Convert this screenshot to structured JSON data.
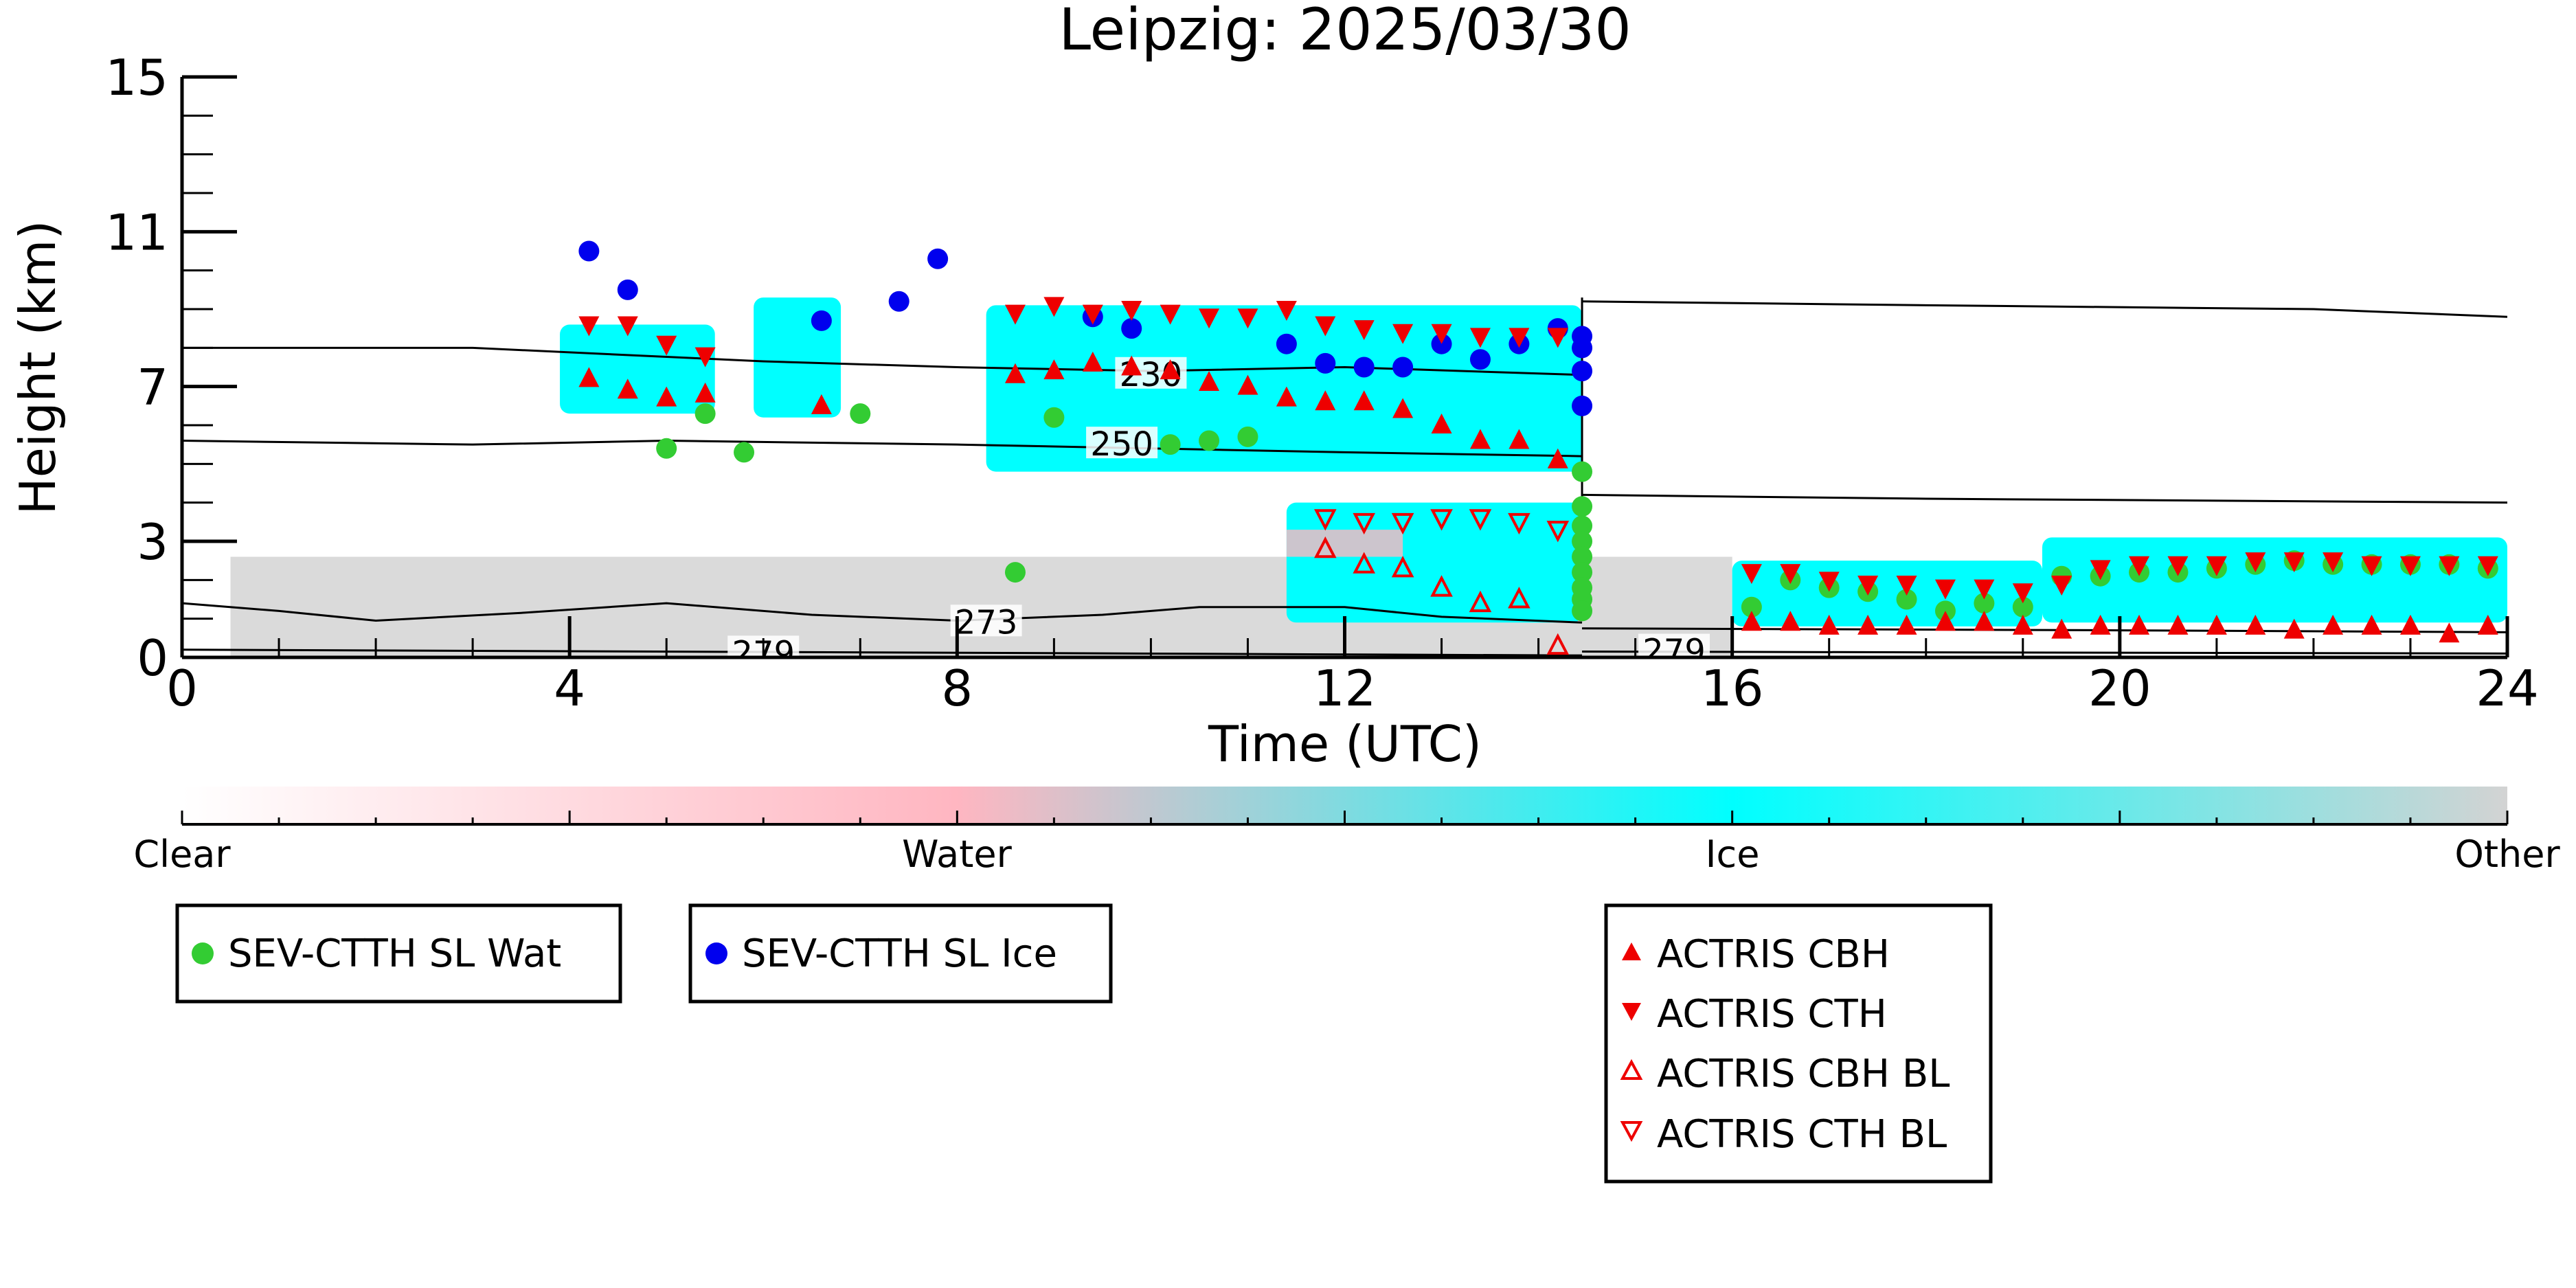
{
  "chart_data": {
    "type": "scatter",
    "title": "Leipzig: 2025/03/30",
    "xlabel": "Time (UTC)",
    "ylabel": "Height (km)",
    "xlim": [
      0,
      24
    ],
    "ylim": [
      0,
      15
    ],
    "xticks": [
      0,
      4,
      8,
      12,
      16,
      20,
      24
    ],
    "yticks": [
      0,
      3,
      7,
      11,
      15
    ],
    "grid": false,
    "colorbar": {
      "labels": [
        "Clear",
        "Water",
        "Ice",
        "Other"
      ],
      "colors": [
        "#ffffff",
        "#ffb6c1",
        "#00ffff",
        "#d3d3d3"
      ]
    },
    "background": {
      "ice_regions": [
        {
          "x0": 3.9,
          "x1": 5.5,
          "y0": 6.3,
          "y1": 8.6
        },
        {
          "x0": 5.9,
          "x1": 6.8,
          "y0": 6.2,
          "y1": 9.3
        },
        {
          "x0": 8.3,
          "x1": 14.45,
          "y0": 4.8,
          "y1": 9.1
        },
        {
          "x0": 11.4,
          "x1": 14.45,
          "y0": 0.9,
          "y1": 4.0
        },
        {
          "x0": 16.0,
          "x1": 19.2,
          "y0": 0.8,
          "y1": 2.5
        },
        {
          "x0": 19.2,
          "x1": 24.0,
          "y0": 0.9,
          "y1": 3.1
        }
      ],
      "other_band": {
        "x0": 0.5,
        "x1": 16.0,
        "y0": 0.0,
        "y1": 2.6
      }
    },
    "contours": [
      {
        "label": "230",
        "label_at": [
          10.0,
          7.3
        ],
        "segments": [
          [
            [
              0,
              8.0
            ],
            [
              3,
              8.0
            ],
            [
              6,
              7.65
            ],
            [
              8,
              7.5
            ],
            [
              10,
              7.4
            ],
            [
              12,
              7.5
            ],
            [
              14.45,
              7.3
            ]
          ],
          [
            [
              14.45,
              9.2
            ],
            [
              18,
              9.1
            ],
            [
              22,
              9.0
            ],
            [
              24,
              8.8
            ]
          ]
        ]
      },
      {
        "label": "250",
        "label_at": [
          9.7,
          5.5
        ],
        "segments": [
          [
            [
              0,
              5.6
            ],
            [
              3,
              5.5
            ],
            [
              5,
              5.6
            ],
            [
              8,
              5.5
            ],
            [
              10,
              5.4
            ],
            [
              12,
              5.3
            ],
            [
              14.45,
              5.2
            ]
          ],
          [
            [
              14.45,
              4.2
            ],
            [
              18,
              4.1
            ],
            [
              24,
              4.0
            ]
          ]
        ]
      },
      {
        "label": "273",
        "label_at": [
          8.3,
          0.9
        ],
        "segments": [
          [
            [
              0,
              1.4
            ],
            [
              1,
              1.2
            ],
            [
              2,
              0.95
            ],
            [
              3.5,
              1.15
            ],
            [
              5,
              1.4
            ],
            [
              6.5,
              1.1
            ],
            [
              8,
              0.95
            ],
            [
              9.5,
              1.1
            ],
            [
              10.5,
              1.3
            ],
            [
              12,
              1.3
            ],
            [
              13,
              1.05
            ],
            [
              14.45,
              0.9
            ]
          ],
          [
            [
              14.45,
              0.75
            ],
            [
              20,
              0.7
            ],
            [
              24,
              0.65
            ]
          ]
        ]
      },
      {
        "label": "279",
        "label_at": [
          6.0,
          0.1
        ],
        "segments": [
          [
            [
              0,
              0.2
            ],
            [
              8,
              0.12
            ],
            [
              14.45,
              0.05
            ]
          ]
        ]
      },
      {
        "label": "279",
        "label_at": [
          15.4,
          0.15
        ],
        "segments": [
          [
            [
              14.45,
              0.15
            ],
            [
              24,
              0.1
            ]
          ]
        ]
      }
    ],
    "series": [
      {
        "name": "SEV-CTTH SL Wat",
        "marker": "circle",
        "color": "#33cc33",
        "x": [
          5.0,
          5.4,
          5.8,
          7.0,
          8.6,
          9.0,
          10.2,
          10.6,
          11.0,
          14.45,
          14.45,
          14.45,
          14.45,
          14.45,
          14.45,
          14.45,
          14.45,
          14.45,
          16.2,
          16.6,
          17.0,
          17.4,
          17.8,
          18.2,
          18.6,
          19.0,
          19.4,
          19.8,
          20.2,
          20.6,
          21.0,
          21.4,
          21.8,
          22.2,
          22.6,
          23.0,
          23.4,
          23.8
        ],
        "y": [
          5.4,
          6.3,
          5.3,
          6.3,
          2.2,
          6.2,
          5.5,
          5.6,
          5.7,
          4.8,
          3.9,
          3.4,
          3.0,
          2.6,
          2.2,
          1.8,
          1.5,
          1.2,
          1.3,
          2.0,
          1.8,
          1.7,
          1.5,
          1.2,
          1.4,
          1.3,
          2.1,
          2.1,
          2.2,
          2.2,
          2.3,
          2.4,
          2.5,
          2.4,
          2.4,
          2.4,
          2.4,
          2.3
        ]
      },
      {
        "name": "SEV-CTTH SL Ice",
        "marker": "circle",
        "color": "#0000ee",
        "x": [
          4.2,
          4.6,
          6.6,
          7.4,
          7.8,
          9.4,
          9.8,
          11.4,
          11.8,
          12.2,
          12.6,
          13.0,
          13.4,
          13.8,
          14.2,
          14.45,
          14.45,
          14.45,
          14.45
        ],
        "y": [
          10.5,
          9.5,
          8.7,
          9.2,
          10.3,
          8.8,
          8.5,
          8.1,
          7.6,
          7.5,
          7.5,
          8.1,
          7.7,
          8.1,
          8.5,
          8.3,
          8.0,
          7.4,
          6.5
        ]
      },
      {
        "name": "ACTRIS CBH",
        "marker": "triangle-up",
        "color": "#ee0000",
        "x": [
          4.2,
          4.6,
          5.0,
          5.4,
          6.6,
          8.6,
          9.0,
          9.4,
          9.8,
          10.2,
          10.6,
          11.0,
          11.4,
          11.8,
          12.2,
          12.6,
          13.0,
          13.4,
          13.8,
          14.2,
          16.2,
          16.6,
          17.0,
          17.4,
          17.8,
          18.2,
          18.6,
          19.0,
          19.4,
          19.8,
          20.2,
          20.6,
          21.0,
          21.4,
          21.8,
          22.2,
          22.6,
          23.0,
          23.4,
          23.8
        ],
        "y": [
          7.2,
          6.9,
          6.7,
          6.8,
          6.5,
          7.3,
          7.4,
          7.6,
          7.5,
          7.4,
          7.1,
          7.0,
          6.7,
          6.6,
          6.6,
          6.4,
          6.0,
          5.6,
          5.6,
          5.1,
          0.9,
          0.9,
          0.8,
          0.8,
          0.8,
          0.9,
          0.9,
          0.8,
          0.7,
          0.8,
          0.8,
          0.8,
          0.8,
          0.8,
          0.7,
          0.8,
          0.8,
          0.8,
          0.6,
          0.8
        ]
      },
      {
        "name": "ACTRIS CTH",
        "marker": "triangle-down",
        "color": "#ee0000",
        "x": [
          4.2,
          4.6,
          5.0,
          5.4,
          8.6,
          9.0,
          9.4,
          9.8,
          10.2,
          10.6,
          11.0,
          11.4,
          11.8,
          12.2,
          12.6,
          13.0,
          13.4,
          13.8,
          14.2,
          16.2,
          16.6,
          17.0,
          17.4,
          17.8,
          18.2,
          18.6,
          19.0,
          19.4,
          19.8,
          20.2,
          20.6,
          21.0,
          21.4,
          21.8,
          22.2,
          22.6,
          23.0,
          23.4,
          23.8
        ],
        "y": [
          8.6,
          8.6,
          8.1,
          7.8,
          8.9,
          9.1,
          8.9,
          9.0,
          8.9,
          8.8,
          8.8,
          9.0,
          8.6,
          8.5,
          8.4,
          8.4,
          8.3,
          8.3,
          8.3,
          2.2,
          2.2,
          2.0,
          1.9,
          1.9,
          1.8,
          1.8,
          1.7,
          1.9,
          2.3,
          2.4,
          2.4,
          2.4,
          2.5,
          2.5,
          2.5,
          2.4,
          2.4,
          2.4,
          2.4
        ]
      },
      {
        "name": "ACTRIS CBH BL",
        "marker": "triangle-up-open",
        "color": "#ee0000",
        "x": [
          11.8,
          12.2,
          12.6,
          13.0,
          13.4,
          13.8,
          14.2
        ],
        "y": [
          2.8,
          2.4,
          2.3,
          1.8,
          1.4,
          1.5,
          0.3
        ]
      },
      {
        "name": "ACTRIS CTH BL",
        "marker": "triangle-down-open",
        "color": "#ee0000",
        "x": [
          11.8,
          12.2,
          12.6,
          13.0,
          13.4,
          13.8,
          14.2
        ],
        "y": [
          3.6,
          3.5,
          3.5,
          3.6,
          3.6,
          3.5,
          3.3
        ]
      }
    ]
  }
}
